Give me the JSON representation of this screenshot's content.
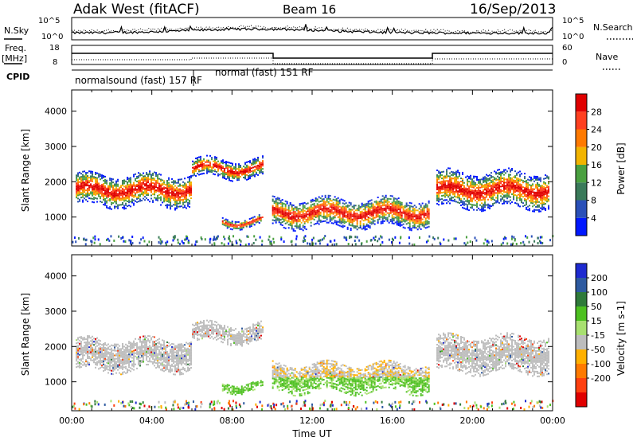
{
  "header": {
    "station": "Adak West (fitACF)",
    "beam": "Beam 16",
    "date": "16/Sep/2013"
  },
  "panels": {
    "nsky": {
      "label": "N.Sky",
      "right_label": "N.Search",
      "left_ticks": [
        "10^5",
        "10^0"
      ],
      "right_ticks": [
        "10^5",
        "10^0"
      ]
    },
    "freq": {
      "label_line1": "Freq.",
      "label_line2": "[MHz]",
      "right_label": "Nave",
      "left_ticks": [
        "18",
        "8"
      ],
      "right_ticks": [
        "60",
        "0"
      ]
    },
    "cpid": {
      "label": "CPID",
      "programs": [
        "normalsound (fast) 157 RF",
        "normal (fast) 151 RF"
      ]
    }
  },
  "chart_data": [
    {
      "type": "heatmap",
      "name": "power",
      "ylabel": "Slant Range [km]",
      "xlabel": "",
      "ylim": [
        180,
        4600
      ],
      "y_ticks": [
        "1000",
        "2000",
        "3000",
        "4000"
      ],
      "x_tick_labels": [
        "00:00",
        "04:00",
        "08:00",
        "12:00",
        "16:00",
        "20:00",
        "00:00"
      ],
      "colorbar_label": "Power [dB]",
      "colorbar_ticks": [
        "4",
        "8",
        "12",
        "16",
        "20",
        "24",
        "28"
      ],
      "colors": [
        "#0018ff",
        "#2a50b8",
        "#3a7a5a",
        "#4aa040",
        "#f2b400",
        "#ff7a00",
        "#ff4020",
        "#e00000"
      ]
    },
    {
      "type": "heatmap",
      "name": "velocity",
      "ylabel": "Slant Range [km]",
      "xlabel": "Time UT",
      "ylim": [
        180,
        4600
      ],
      "y_ticks": [
        "1000",
        "2000",
        "3000",
        "4000"
      ],
      "x_tick_labels": [
        "00:00",
        "04:00",
        "08:00",
        "12:00",
        "16:00",
        "20:00",
        "00:00"
      ],
      "colorbar_label": "Velocity [m s-1]",
      "colorbar_ticks": [
        "200",
        "100",
        "50",
        "15",
        "-15",
        "-50",
        "-100",
        "-200"
      ],
      "colors": [
        "#1e2ad0",
        "#2e5aa0",
        "#2f7a3a",
        "#4dc020",
        "#a8e070",
        "#bdbdbd",
        "#ffb000",
        "#ff7a00",
        "#ff4010",
        "#e00000"
      ]
    }
  ],
  "colors": {
    "ground_scatter": "#bdbdbd",
    "background": "#ffffff"
  }
}
